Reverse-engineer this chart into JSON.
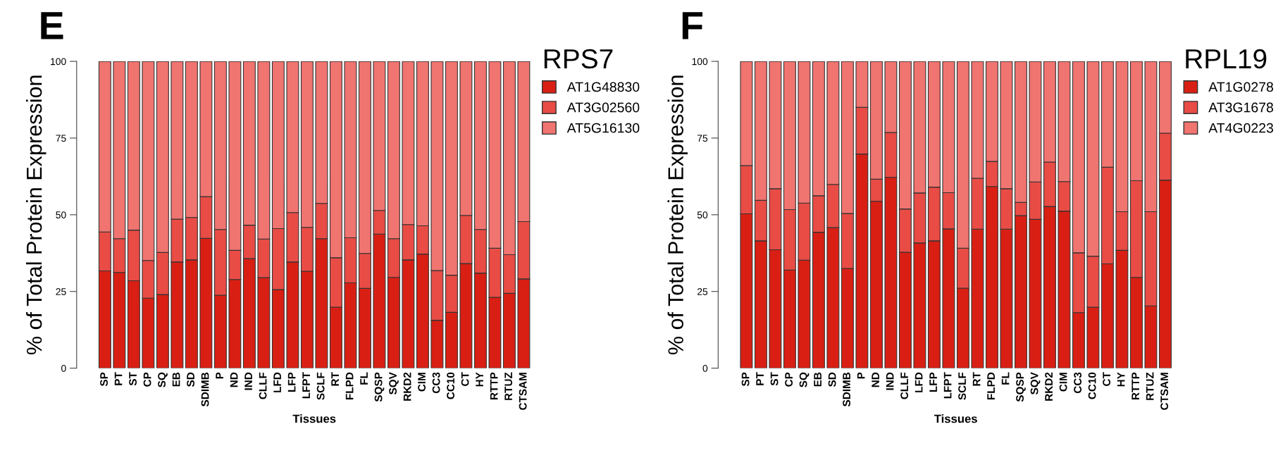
{
  "chart_data": [
    {
      "type": "bar",
      "stacked": true,
      "legend_title": "RPS7",
      "xlabel": "Tissues",
      "ylabel": "% of Total Protein Expression",
      "annotations": [
        "E"
      ],
      "legend": "top right",
      "grid": false,
      "ylim": [
        0,
        100
      ],
      "yticks": [
        0,
        25,
        50,
        75,
        100
      ],
      "categories": [
        "SP",
        "PT",
        "ST",
        "CP",
        "SQ",
        "EB",
        "SD",
        "SDIMB",
        "P",
        "ND",
        "IND",
        "CLLF",
        "LFD",
        "LFP",
        "LFPT",
        "SCLF",
        "RT",
        "FLPD",
        "FL",
        "SQSP",
        "SQV",
        "RKD2",
        "CIM",
        "CC3",
        "CC10",
        "CT",
        "HY",
        "RTTP",
        "RTUZ",
        "CTSAM"
      ],
      "series": [
        {
          "name": "AT1G48830",
          "color": "#d91f14",
          "values": [
            31.7,
            31.2,
            28.5,
            22.8,
            24.0,
            34.6,
            35.3,
            42.3,
            23.8,
            28.9,
            35.7,
            29.5,
            25.6,
            34.6,
            31.6,
            42.2,
            19.9,
            27.8,
            26.0,
            43.7,
            29.6,
            35.3,
            37.2,
            15.6,
            18.2,
            34.1,
            31.0,
            23.1,
            24.4,
            29.1
          ]
        },
        {
          "name": "AT3G02560",
          "color": "#e84c45",
          "values": [
            12.7,
            11.0,
            16.5,
            12.3,
            13.7,
            14.0,
            13.8,
            13.6,
            21.4,
            9.5,
            10.9,
            12.6,
            19.9,
            16.1,
            14.3,
            11.5,
            16.1,
            14.7,
            11.4,
            7.7,
            12.6,
            11.5,
            9.2,
            16.2,
            12.1,
            15.7,
            14.2,
            16.0,
            12.6,
            18.7
          ]
        },
        {
          "name": "AT5G16130",
          "color": "#f07470",
          "values": [
            55.6,
            57.8,
            55.0,
            64.9,
            62.3,
            51.4,
            50.9,
            44.1,
            54.8,
            61.6,
            53.4,
            57.9,
            54.5,
            49.3,
            54.1,
            46.3,
            64.0,
            57.5,
            62.6,
            48.6,
            57.8,
            53.2,
            53.6,
            68.2,
            69.7,
            50.2,
            54.8,
            60.9,
            63.0,
            52.2
          ]
        }
      ]
    },
    {
      "type": "bar",
      "stacked": true,
      "legend_title": "RPL19",
      "xlabel": "Tissues",
      "ylabel": "% of Total Protein Expression",
      "annotations": [
        "F"
      ],
      "legend": "top right",
      "grid": false,
      "ylim": [
        0,
        100
      ],
      "yticks": [
        0,
        25,
        50,
        75,
        100
      ],
      "categories": [
        "SP",
        "PT",
        "ST",
        "CP",
        "SQ",
        "EB",
        "SD",
        "SDIMB",
        "P",
        "ND",
        "IND",
        "CLLF",
        "LFD",
        "LFP",
        "LFPT",
        "SCLF",
        "RT",
        "FLPD",
        "FL",
        "SQSP",
        "SQV",
        "RKD2",
        "CIM",
        "CC3",
        "CC10",
        "CT",
        "HY",
        "RTTP",
        "RTUZ",
        "CTSAM"
      ],
      "series": [
        {
          "name": "AT1G0278",
          "color": "#d91f14",
          "values": [
            50.3,
            41.5,
            38.6,
            32.0,
            35.2,
            44.3,
            45.8,
            32.5,
            69.8,
            54.4,
            62.2,
            37.8,
            40.8,
            41.5,
            45.4,
            26.1,
            45.3,
            59.2,
            45.3,
            49.7,
            48.5,
            52.7,
            51.2,
            18.1,
            19.9,
            34.0,
            38.4,
            29.6,
            20.3,
            61.3
          ]
        },
        {
          "name": "AT3G1678",
          "color": "#e84c45",
          "values": [
            15.7,
            13.2,
            19.9,
            19.7,
            18.6,
            11.9,
            14.1,
            17.9,
            15.2,
            7.2,
            14.6,
            14.1,
            16.3,
            17.5,
            11.8,
            13.0,
            16.6,
            8.2,
            13.2,
            4.3,
            12.2,
            14.5,
            9.6,
            19.5,
            16.6,
            31.5,
            12.6,
            31.5,
            30.7,
            15.3
          ]
        },
        {
          "name": "AT4G0223",
          "color": "#f07470",
          "values": [
            34.0,
            45.3,
            41.5,
            48.3,
            46.2,
            43.8,
            40.1,
            49.6,
            15.0,
            38.4,
            23.2,
            48.1,
            42.9,
            41.0,
            42.8,
            60.9,
            38.1,
            32.6,
            41.5,
            46.0,
            39.3,
            32.8,
            39.2,
            62.4,
            63.5,
            34.5,
            49.0,
            38.9,
            49.0,
            23.4
          ]
        }
      ]
    }
  ]
}
